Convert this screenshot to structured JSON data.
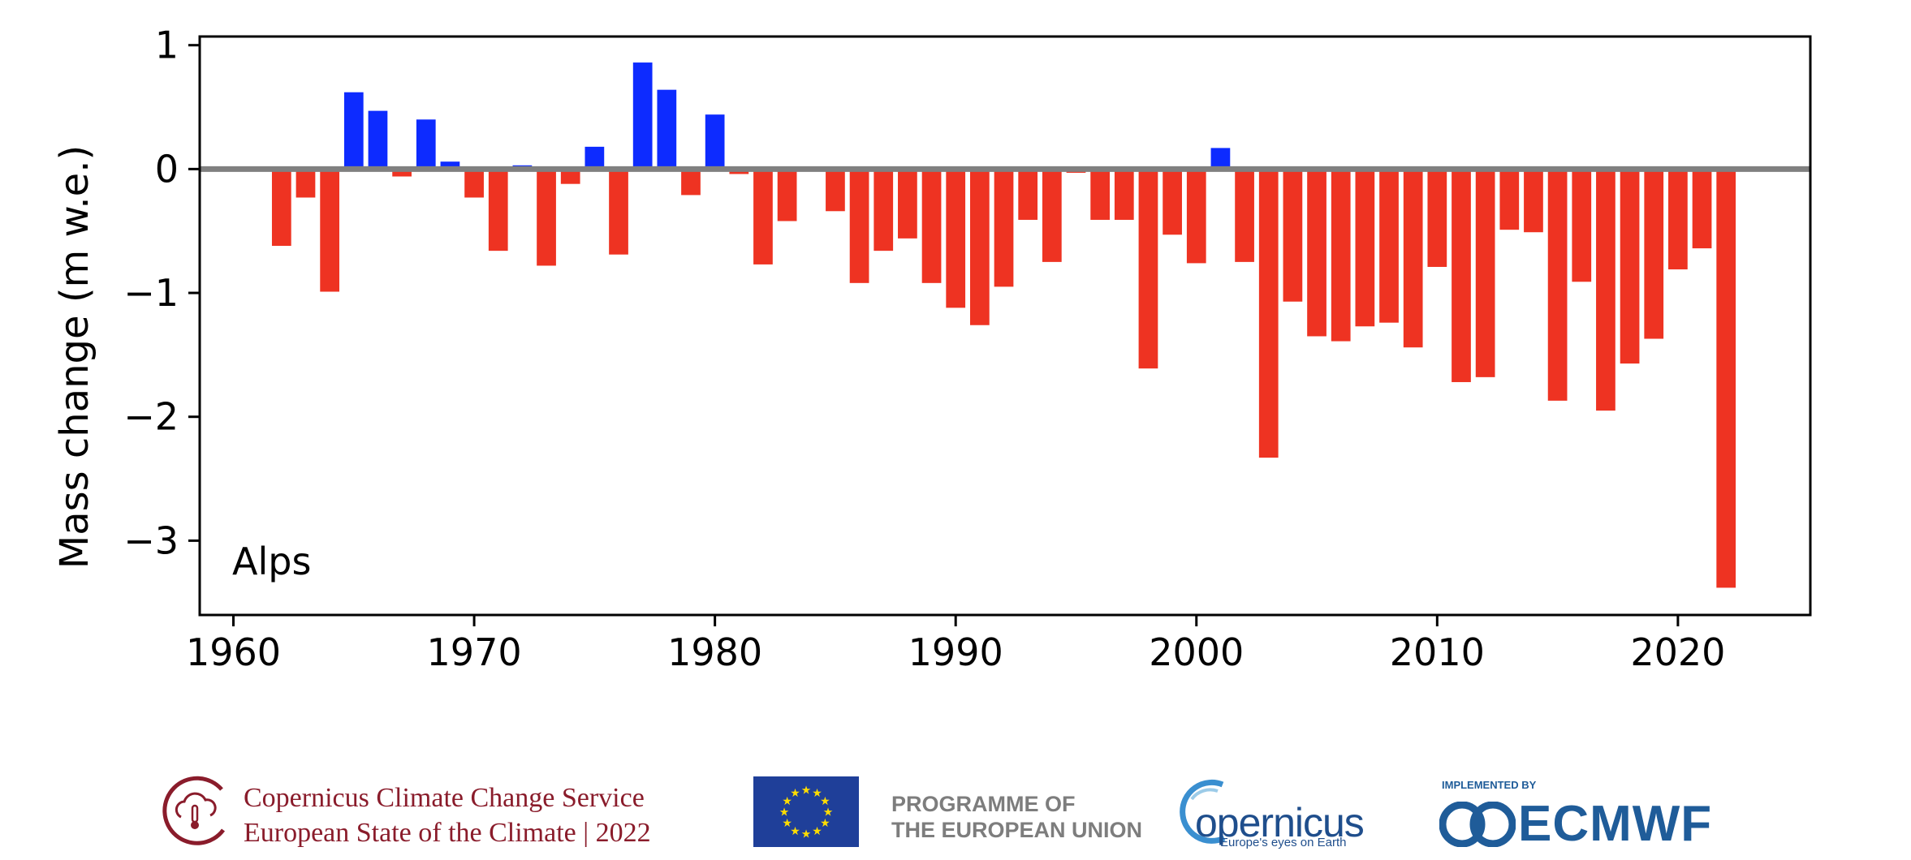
{
  "chart_data": {
    "type": "bar",
    "region_label": "Alps",
    "ylabel": "Mass change (m w.e.)",
    "xlabel": "",
    "xlim": [
      1958.6,
      2025.5
    ],
    "ylim": [
      -3.6,
      1.07
    ],
    "xticks": [
      1960,
      1970,
      1980,
      1990,
      2000,
      2010,
      2020
    ],
    "yticks": [
      1,
      0,
      -1,
      -2,
      -3
    ],
    "ytick_labels": [
      "1",
      "0",
      "−1",
      "−2",
      "−3"
    ],
    "grid": false,
    "zero_line": true,
    "colors": {
      "positive": "#0d2bff",
      "negative": "#ee3322",
      "zero_line": "#808080"
    },
    "x": [
      1962,
      1963,
      1964,
      1965,
      1966,
      1967,
      1968,
      1969,
      1970,
      1971,
      1972,
      1973,
      1974,
      1975,
      1976,
      1977,
      1978,
      1979,
      1980,
      1981,
      1982,
      1983,
      1984,
      1985,
      1986,
      1987,
      1988,
      1989,
      1990,
      1991,
      1992,
      1993,
      1994,
      1995,
      1996,
      1997,
      1998,
      1999,
      2000,
      2001,
      2002,
      2003,
      2004,
      2005,
      2006,
      2007,
      2008,
      2009,
      2010,
      2011,
      2012,
      2013,
      2014,
      2015,
      2016,
      2017,
      2018,
      2019,
      2020,
      2021,
      2022
    ],
    "values": [
      -0.62,
      -0.23,
      -0.99,
      0.62,
      0.47,
      -0.06,
      0.4,
      0.06,
      -0.23,
      -0.66,
      0.03,
      -0.78,
      -0.12,
      0.18,
      -0.69,
      0.86,
      0.64,
      -0.21,
      0.44,
      -0.04,
      -0.77,
      -0.42,
      0.0,
      -0.34,
      -0.92,
      -0.66,
      -0.56,
      -0.92,
      -1.12,
      -1.26,
      -0.95,
      -0.41,
      -0.75,
      -0.03,
      -0.41,
      -0.41,
      -1.61,
      -0.53,
      -0.76,
      0.17,
      -0.75,
      -2.33,
      -1.07,
      -1.35,
      -1.39,
      -1.27,
      -1.24,
      -1.44,
      -0.79,
      -1.72,
      -1.68,
      -0.49,
      -0.51,
      -1.87,
      -0.91,
      -1.95,
      -1.57,
      -1.37,
      -0.81,
      -0.64,
      -3.38
    ]
  },
  "footer": {
    "c3s_line1": "Copernicus Climate Change Service",
    "c3s_line2": "European State of the Climate | 2022",
    "eu_line1": "PROGRAMME OF",
    "eu_line2": "THE EUROPEAN UNION",
    "copernicus_word": "opernicus",
    "copernicus_tagline": "Europe's eyes on Earth",
    "implemented_by": "IMPLEMENTED BY",
    "ecmwf": "ECMWF"
  }
}
